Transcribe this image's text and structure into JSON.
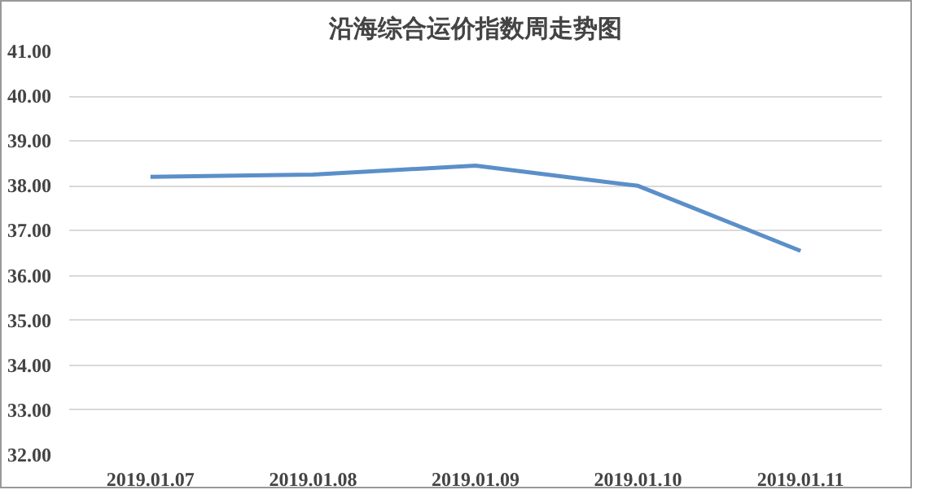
{
  "chart_data": {
    "type": "line",
    "title": "沿海综合运价指数周走势图",
    "categories": [
      "2019.01.07",
      "2019.01.08",
      "2019.01.09",
      "2019.01.10",
      "2019.01.11"
    ],
    "series": [
      {
        "color": "#5b8fc9",
        "values": [
          38.2,
          38.25,
          38.45,
          38.0,
          36.55
        ]
      }
    ],
    "ylim": [
      32,
      41
    ],
    "yticks": [
      {
        "value": 32,
        "label": "32.00"
      },
      {
        "value": 33,
        "label": "33.00"
      },
      {
        "value": 34,
        "label": "34.00"
      },
      {
        "value": 35,
        "label": "35.00"
      },
      {
        "value": 36,
        "label": "36.00"
      },
      {
        "value": 37,
        "label": "37.00"
      },
      {
        "value": 38,
        "label": "38.00"
      },
      {
        "value": 39,
        "label": "39.00"
      },
      {
        "value": 40,
        "label": "40.00"
      },
      {
        "value": 41,
        "label": "41.00"
      }
    ],
    "grid": "y",
    "marker": "none",
    "line_style": "solid"
  }
}
